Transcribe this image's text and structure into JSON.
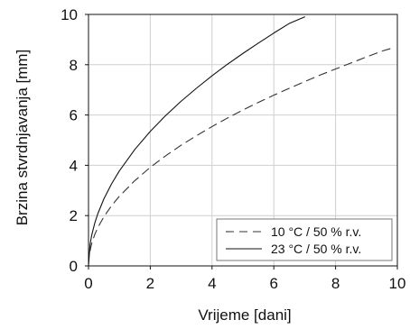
{
  "chart_data": {
    "type": "line",
    "xlabel": "Vrijeme [dani]",
    "ylabel": "Brzina stvrdnjavanja [mm]",
    "xlim": [
      0,
      10
    ],
    "ylim": [
      0,
      10
    ],
    "xticks": [
      0,
      2,
      4,
      6,
      8,
      10
    ],
    "yticks": [
      0,
      2,
      4,
      6,
      8,
      10
    ],
    "grid": true,
    "legend_position": "bottom-right",
    "series": [
      {
        "name": "10 °C / 50 % r.v.",
        "style": "dashed",
        "color": "#333333",
        "x": [
          0.05,
          0.1,
          0.2,
          0.3,
          0.5,
          0.75,
          1,
          1.5,
          2,
          2.5,
          3,
          3.5,
          4,
          4.5,
          5,
          5.5,
          6,
          6.5,
          7,
          7.5,
          8,
          8.5,
          9,
          9.5,
          9.8
        ],
        "y": [
          0.6,
          0.88,
          1.24,
          1.52,
          1.96,
          2.4,
          2.77,
          3.39,
          3.92,
          4.38,
          4.8,
          5.18,
          5.54,
          5.88,
          6.2,
          6.5,
          6.79,
          7.06,
          7.33,
          7.59,
          7.83,
          8.07,
          8.31,
          8.54,
          8.65
        ]
      },
      {
        "name": "23 °C / 50 % r.v.",
        "style": "solid",
        "color": "#111111",
        "x": [
          0,
          0.05,
          0.1,
          0.2,
          0.3,
          0.5,
          0.75,
          1,
          1.5,
          2,
          2.5,
          3,
          3.5,
          4,
          4.5,
          5,
          5.5,
          6,
          6.5,
          7
        ],
        "y": [
          0,
          0.85,
          1.2,
          1.69,
          2.07,
          2.67,
          3.27,
          3.78,
          4.63,
          5.35,
          5.98,
          6.55,
          7.07,
          7.56,
          8.02,
          8.45,
          8.86,
          9.26,
          9.64,
          9.9
        ]
      }
    ]
  }
}
